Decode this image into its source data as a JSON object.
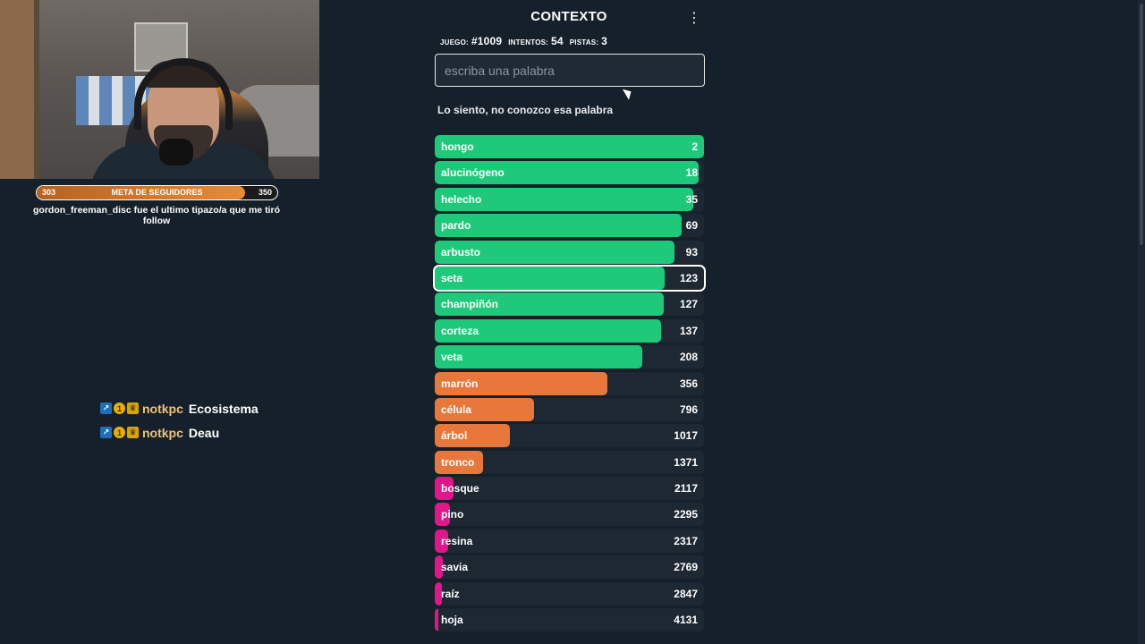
{
  "stream": {
    "follower_goal": {
      "title": "META DE SEGUIDORES",
      "current": "303",
      "target": "350",
      "progress": 0.866
    },
    "last_follow_message": "gordon_freeman_disc fue el ultimo tipazo/a que me tiró follow",
    "chat": [
      {
        "user": "notkpc",
        "message": "Ecosistema"
      },
      {
        "user": "notkpc",
        "message": "Deau"
      }
    ]
  },
  "game": {
    "title": "CONTEXTO",
    "menu_icon": "more-vert-icon",
    "stats": {
      "game_label": "JUEGO:",
      "game_value": "#1009",
      "attempts_label": "INTENTOS:",
      "attempts_value": "54",
      "hints_label": "PISTAS:",
      "hints_value": "3"
    },
    "input": {
      "placeholder": "escriba una palabra",
      "value": ""
    },
    "message": "Lo siento, no conozco esa palabra",
    "colors": {
      "green": "#1fc97a",
      "orange": "#e8773b",
      "pink": "#e0168a"
    },
    "guesses": [
      {
        "word": "hongo",
        "rank": "2",
        "tier": "green",
        "fill": 1.0
      },
      {
        "word": "alucinógeno",
        "rank": "18",
        "tier": "green",
        "fill": 0.98
      },
      {
        "word": "helecho",
        "rank": "35",
        "tier": "green",
        "fill": 0.96
      },
      {
        "word": "pardo",
        "rank": "69",
        "tier": "green",
        "fill": 0.917
      },
      {
        "word": "arbusto",
        "rank": "93",
        "tier": "green",
        "fill": 0.89
      },
      {
        "word": "seta",
        "rank": "123",
        "tier": "green",
        "fill": 0.855,
        "current": true
      },
      {
        "word": "champiñón",
        "rank": "127",
        "tier": "green",
        "fill": 0.85
      },
      {
        "word": "corteza",
        "rank": "137",
        "tier": "green",
        "fill": 0.84
      },
      {
        "word": "veta",
        "rank": "208",
        "tier": "green",
        "fill": 0.77
      },
      {
        "word": "marrón",
        "rank": "356",
        "tier": "orange",
        "fill": 0.64
      },
      {
        "word": "célula",
        "rank": "796",
        "tier": "orange",
        "fill": 0.37
      },
      {
        "word": "árbol",
        "rank": "1017",
        "tier": "orange",
        "fill": 0.28
      },
      {
        "word": "tronco",
        "rank": "1371",
        "tier": "orange",
        "fill": 0.18
      },
      {
        "word": "bosque",
        "rank": "2117",
        "tier": "pink",
        "fill": 0.07
      },
      {
        "word": "pino",
        "rank": "2295",
        "tier": "pink",
        "fill": 0.055
      },
      {
        "word": "resina",
        "rank": "2317",
        "tier": "pink",
        "fill": 0.05
      },
      {
        "word": "savia",
        "rank": "2769",
        "tier": "pink",
        "fill": 0.03
      },
      {
        "word": "raíz",
        "rank": "2847",
        "tier": "pink",
        "fill": 0.025
      },
      {
        "word": "hoja",
        "rank": "4131",
        "tier": "pink",
        "fill": 0.012
      }
    ]
  }
}
